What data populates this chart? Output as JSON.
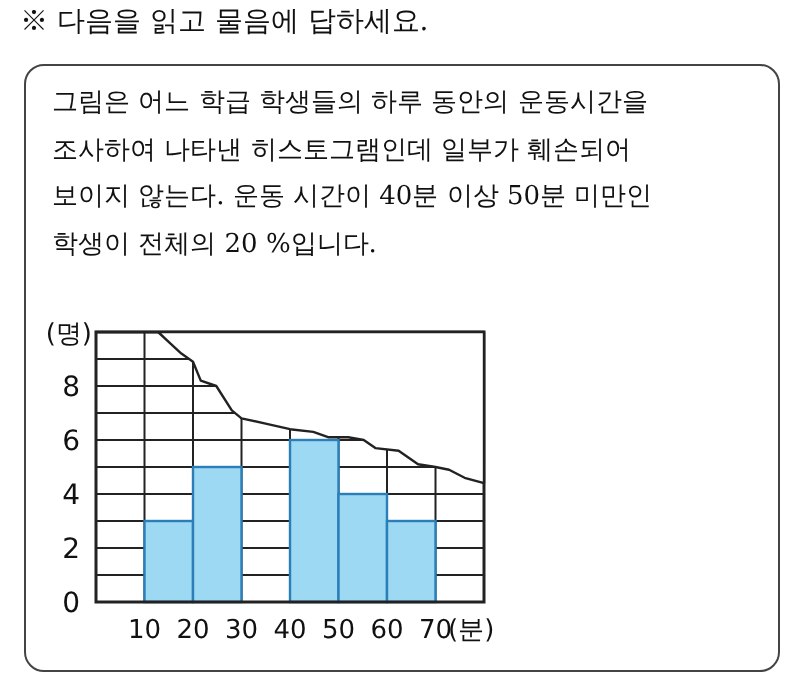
{
  "chart_data": {
    "type": "histogram",
    "title": "※ 다음을 읽고 물음에 답하세요.",
    "subtitle": "그림은 어느 학급 학생들의 하루 동안의 운동시간을 조사하여 나타낸 히스토그램인데 일부가 훼손되어 보이지 않는다. 운동 시간이 40분 이상 50분 미만인 학생이 전체의 20 %입니다.",
    "xlabel": "(분)",
    "ylabel": "(명)",
    "bins": [
      10,
      20,
      30,
      40,
      50,
      60,
      70
    ],
    "values": [
      3,
      5,
      null,
      6,
      4,
      3
    ],
    "color": "#9dd9f3",
    "xlim": [
      0,
      80
    ],
    "xticks": [
      {
        "value": 0,
        "label": null
      },
      10,
      20,
      30,
      40,
      50,
      60,
      70,
      {
        "value": 80,
        "label": null
      }
    ],
    "ylim": [
      0,
      10
    ],
    "yticks": [
      0,
      {
        "value": 1,
        "label": null
      },
      2,
      {
        "value": 3,
        "label": null
      },
      4,
      {
        "value": 5,
        "label": null
      },
      6,
      {
        "value": 7,
        "label": null
      },
      8,
      {
        "value": 9,
        "label": null
      },
      {
        "value": 10,
        "label": null
      }
    ],
    "grid": true
  }
}
